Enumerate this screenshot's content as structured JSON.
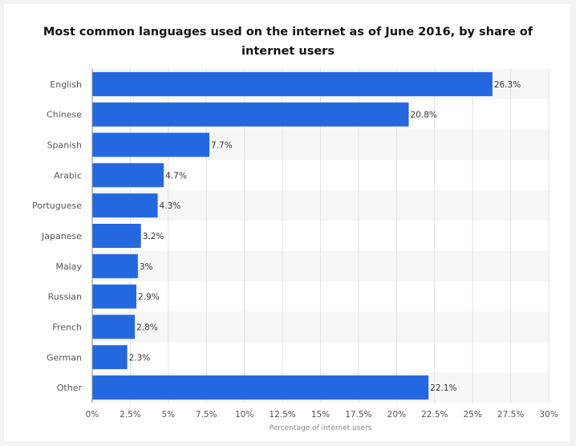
{
  "chart_data": {
    "type": "bar",
    "orientation": "horizontal",
    "title": "Most common languages used on the internet as of June 2016, by share of internet users",
    "xlabel": "Percentage of internet users",
    "ylabel": "",
    "categories": [
      "English",
      "Chinese",
      "Spanish",
      "Arabic",
      "Portuguese",
      "Japanese",
      "Malay",
      "Russian",
      "French",
      "German",
      "Other"
    ],
    "values": [
      26.3,
      20.8,
      7.7,
      4.7,
      4.3,
      3.2,
      3,
      2.9,
      2.8,
      2.3,
      22.1
    ],
    "value_labels": [
      "26.3%",
      "20.8%",
      "7.7%",
      "4.7%",
      "4.3%",
      "3.2%",
      "3%",
      "2.9%",
      "2.8%",
      "2.3%",
      "22.1%"
    ],
    "xlim": [
      0,
      30
    ],
    "xticks": [
      0,
      2.5,
      5,
      7.5,
      10,
      12.5,
      15,
      17.5,
      20,
      22.5,
      25,
      27.5,
      30
    ],
    "xtick_labels": [
      "0%",
      "2.5%",
      "5%",
      "7.5%",
      "10%",
      "12.5%",
      "15%",
      "17.5%",
      "20%",
      "22.5%",
      "25%",
      "27.5%",
      "30%"
    ],
    "grid": true,
    "colors": {
      "bar": "#2468e0",
      "grid": "#e2e2e2",
      "band": "#f6f6f6"
    }
  }
}
